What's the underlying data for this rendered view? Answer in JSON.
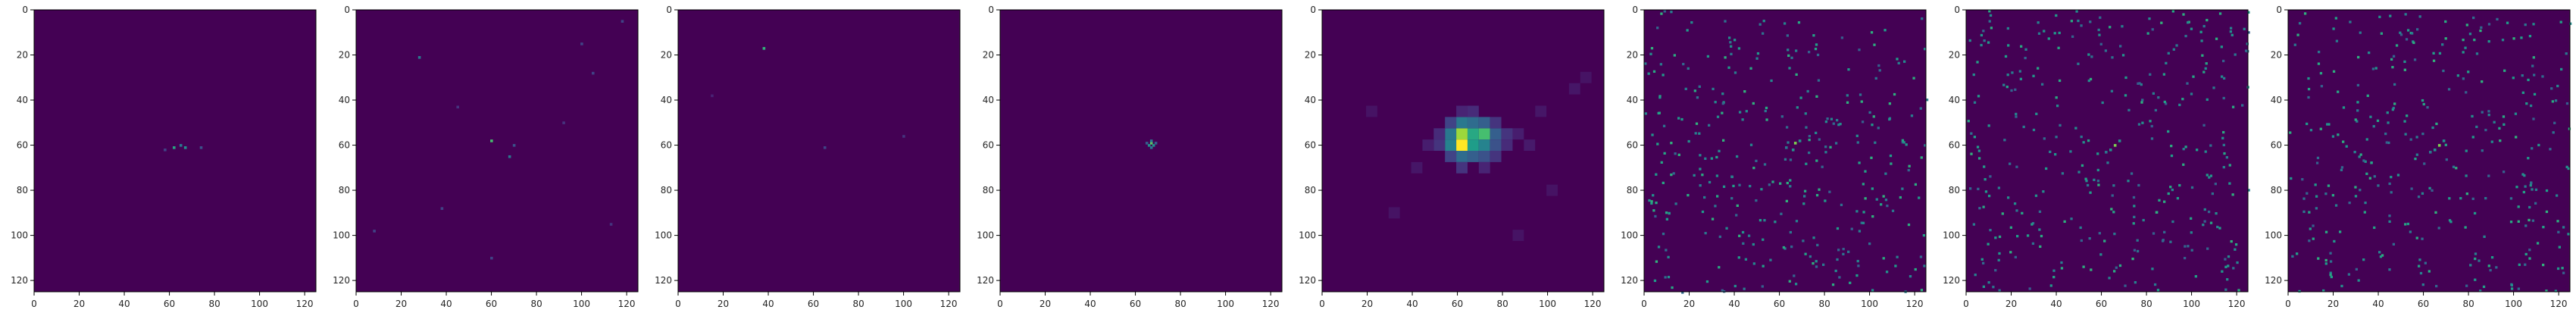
{
  "chart_data": [
    {
      "type": "heatmap",
      "xlim": [
        0,
        125
      ],
      "ylim": [
        0,
        125
      ],
      "x_ticks": [
        "0",
        "20",
        "40",
        "60",
        "80",
        "100",
        "120"
      ],
      "y_ticks": [
        "0",
        "20",
        "40",
        "60",
        "80",
        "100",
        "120"
      ],
      "background": "#440154",
      "points": [
        [
          62,
          61,
          0.6
        ],
        [
          65,
          60,
          0.4
        ],
        [
          67,
          61,
          0.5
        ],
        [
          74,
          61,
          0.25
        ],
        [
          58,
          62,
          0.2
        ]
      ]
    },
    {
      "type": "heatmap",
      "xlim": [
        0,
        125
      ],
      "ylim": [
        0,
        125
      ],
      "x_ticks": [
        "0",
        "20",
        "40",
        "60",
        "80",
        "100",
        "120"
      ],
      "y_ticks": [
        "0",
        "20",
        "40",
        "60",
        "80",
        "100",
        "120"
      ],
      "background": "#440154",
      "points": [
        [
          60,
          58,
          0.7
        ],
        [
          28,
          21,
          0.4
        ],
        [
          68,
          65,
          0.4
        ],
        [
          70,
          60,
          0.25
        ],
        [
          100,
          15,
          0.2
        ],
        [
          105,
          28,
          0.2
        ],
        [
          45,
          43,
          0.15
        ],
        [
          38,
          88,
          0.2
        ],
        [
          60,
          110,
          0.2
        ],
        [
          113,
          95,
          0.15
        ],
        [
          8,
          98,
          0.2
        ],
        [
          92,
          50,
          0.15
        ],
        [
          118,
          5,
          0.2
        ]
      ]
    },
    {
      "type": "heatmap",
      "xlim": [
        0,
        125
      ],
      "ylim": [
        0,
        125
      ],
      "x_ticks": [
        "0",
        "20",
        "40",
        "60",
        "80",
        "100",
        "120"
      ],
      "y_ticks": [
        "0",
        "20",
        "40",
        "60",
        "80",
        "100",
        "120"
      ],
      "background": "#440154",
      "points": [
        [
          38,
          17,
          0.65
        ],
        [
          65,
          61,
          0.2
        ],
        [
          100,
          56,
          0.15
        ],
        [
          15,
          38,
          0.1
        ]
      ]
    },
    {
      "type": "heatmap",
      "xlim": [
        0,
        125
      ],
      "ylim": [
        0,
        125
      ],
      "x_ticks": [
        "0",
        "20",
        "40",
        "60",
        "80",
        "100",
        "120"
      ],
      "y_ticks": [
        "0",
        "20",
        "40",
        "60",
        "80",
        "100",
        "120"
      ],
      "background": "#440154",
      "points": [
        [
          67,
          59,
          0.75
        ],
        [
          66,
          60,
          0.5
        ],
        [
          68,
          60,
          0.5
        ],
        [
          67,
          58,
          0.4
        ],
        [
          67,
          61,
          0.4
        ],
        [
          69,
          59,
          0.3
        ],
        [
          65,
          59,
          0.3
        ]
      ]
    },
    {
      "type": "heatmap",
      "xlim": [
        0,
        125
      ],
      "ylim": [
        0,
        125
      ],
      "x_ticks": [
        "0",
        "20",
        "40",
        "60",
        "80",
        "100",
        "120"
      ],
      "y_ticks": [
        "0",
        "20",
        "40",
        "60",
        "80",
        "100",
        "120"
      ],
      "background": "#440154",
      "cell": 5,
      "cells": [
        [
          62,
          60,
          1.0
        ],
        [
          62,
          55,
          0.85
        ],
        [
          67,
          55,
          0.6
        ],
        [
          67,
          60,
          0.55
        ],
        [
          72,
          55,
          0.7
        ],
        [
          72,
          60,
          0.45
        ],
        [
          57,
          55,
          0.4
        ],
        [
          57,
          60,
          0.45
        ],
        [
          62,
          50,
          0.4
        ],
        [
          67,
          50,
          0.35
        ],
        [
          72,
          50,
          0.3
        ],
        [
          77,
          55,
          0.3
        ],
        [
          77,
          60,
          0.25
        ],
        [
          62,
          65,
          0.35
        ],
        [
          67,
          65,
          0.3
        ],
        [
          72,
          65,
          0.25
        ],
        [
          57,
          65,
          0.2
        ],
        [
          57,
          50,
          0.2
        ],
        [
          52,
          60,
          0.15
        ],
        [
          82,
          55,
          0.15
        ],
        [
          62,
          70,
          0.15
        ],
        [
          67,
          45,
          0.12
        ],
        [
          77,
          50,
          0.15
        ],
        [
          77,
          65,
          0.15
        ],
        [
          52,
          55,
          0.12
        ],
        [
          82,
          60,
          0.12
        ],
        [
          62,
          45,
          0.1
        ],
        [
          72,
          70,
          0.1
        ],
        [
          87,
          55,
          0.08
        ],
        [
          92,
          60,
          0.07
        ],
        [
          47,
          60,
          0.08
        ],
        [
          42,
          70,
          0.06
        ],
        [
          97,
          45,
          0.06
        ],
        [
          112,
          35,
          0.06
        ],
        [
          117,
          30,
          0.05
        ],
        [
          32,
          90,
          0.05
        ],
        [
          102,
          80,
          0.05
        ],
        [
          22,
          45,
          0.05
        ],
        [
          87,
          100,
          0.05
        ]
      ]
    },
    {
      "type": "heatmap",
      "xlim": [
        0,
        125
      ],
      "ylim": [
        0,
        125
      ],
      "x_ticks": [
        "0",
        "20",
        "40",
        "60",
        "80",
        "100",
        "120"
      ],
      "y_ticks": [
        "0",
        "20",
        "40",
        "60",
        "80",
        "100",
        "120"
      ],
      "background": "#440154",
      "noise_seed": 11,
      "noise_count": 330,
      "points": [
        [
          67,
          59,
          0.8
        ],
        [
          66,
          62,
          0.5
        ],
        [
          69,
          58,
          0.5
        ],
        [
          63,
          61,
          0.4
        ]
      ]
    },
    {
      "type": "heatmap",
      "xlim": [
        0,
        125
      ],
      "ylim": [
        0,
        125
      ],
      "x_ticks": [
        "0",
        "20",
        "40",
        "60",
        "80",
        "100",
        "120"
      ],
      "y_ticks": [
        "0",
        "20",
        "40",
        "60",
        "80",
        "100",
        "120"
      ],
      "background": "#440154",
      "noise_seed": 23,
      "noise_count": 330,
      "points": [
        [
          66,
          60,
          0.8
        ],
        [
          64,
          62,
          0.5
        ],
        [
          68,
          58,
          0.5
        ],
        [
          62,
          63,
          0.4
        ]
      ]
    },
    {
      "type": "heatmap",
      "xlim": [
        0,
        125
      ],
      "ylim": [
        0,
        125
      ],
      "x_ticks": [
        "0",
        "20",
        "40",
        "60",
        "80",
        "100",
        "120"
      ],
      "y_ticks": [
        "0",
        "20",
        "40",
        "60",
        "80",
        "100",
        "120"
      ],
      "background": "#440154",
      "noise_seed": 37,
      "noise_count": 330,
      "points": [
        [
          67,
          60,
          0.8
        ],
        [
          65,
          62,
          0.5
        ],
        [
          69,
          58,
          0.5
        ],
        [
          63,
          63,
          0.4
        ]
      ]
    }
  ]
}
